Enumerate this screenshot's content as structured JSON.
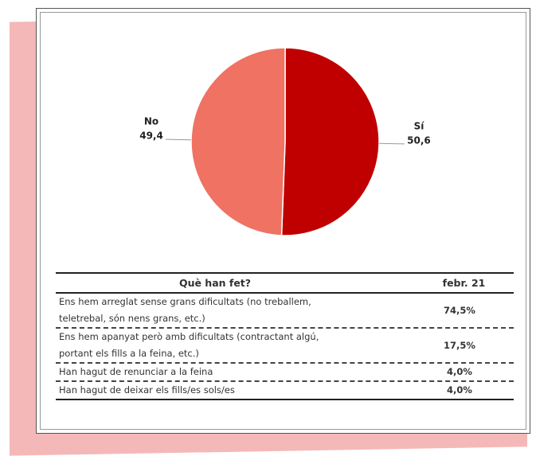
{
  "chart_data": {
    "type": "pie",
    "categories": [
      "Sí",
      "No"
    ],
    "values": [
      50.6,
      49.4
    ],
    "value_labels": [
      "50,6",
      "49,4"
    ],
    "colors": [
      "#c00000",
      "#ef7263"
    ]
  },
  "table": {
    "header": [
      "Què han fet?",
      "febr. 21"
    ],
    "rows": [
      [
        "Ens hem arreglat sense grans dificultats (no treballem, teletrebal, són nens grans, etc.)",
        "74,5%"
      ],
      [
        "Ens hem apanyat però amb dificultats (contractant algú, portant els fills a la feina, etc.)",
        "17,5%"
      ],
      [
        "Han hagut de renunciar a la feina",
        "4,0%"
      ],
      [
        "Han hagut de deixar els fills/es sols/es",
        "4,0%"
      ]
    ]
  }
}
